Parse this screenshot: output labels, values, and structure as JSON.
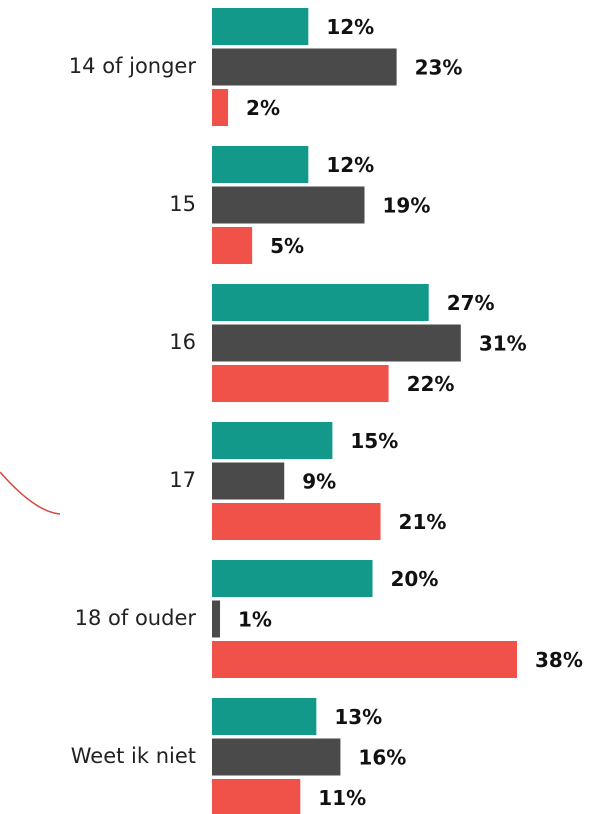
{
  "chart_data": {
    "type": "bar",
    "orientation": "horizontal",
    "categories": [
      "14 of jonger",
      "15",
      "16",
      "17",
      "18 of ouder",
      "Weet ik niet"
    ],
    "series": [
      {
        "color": "#13998a",
        "values": [
          12,
          12,
          27,
          15,
          20,
          13
        ],
        "value_labels": [
          "12%",
          "12%",
          "27%",
          "15%",
          "20%",
          "13%"
        ]
      },
      {
        "color": "#4a4a4a",
        "values": [
          23,
          19,
          31,
          9,
          1,
          16
        ],
        "value_labels": [
          "23%",
          "19%",
          "31%",
          "9%",
          "1%",
          "16%"
        ]
      },
      {
        "color": "#f0524a",
        "values": [
          2,
          5,
          22,
          21,
          38,
          11
        ],
        "value_labels": [
          "2%",
          "5%",
          "22%",
          "21%",
          "38%",
          "11%"
        ]
      }
    ]
  }
}
